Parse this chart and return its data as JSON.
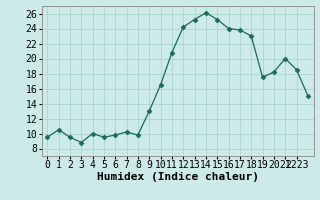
{
  "x": [
    0,
    1,
    2,
    3,
    4,
    5,
    6,
    7,
    8,
    9,
    10,
    11,
    12,
    13,
    14,
    15,
    16,
    17,
    18,
    19,
    20,
    21,
    22,
    23
  ],
  "y": [
    9.5,
    10.5,
    9.5,
    8.8,
    10.0,
    9.5,
    9.8,
    10.2,
    9.8,
    13.0,
    16.5,
    20.8,
    24.2,
    25.2,
    26.1,
    25.2,
    24.0,
    23.8,
    23.0,
    17.5,
    18.2,
    20.0,
    18.5,
    15.0
  ],
  "line_color": "#1a6b5a",
  "marker": "D",
  "marker_size": 2.5,
  "bg_color": "#cceae7",
  "grid_color": "#aad4d0",
  "xlabel": "Humidex (Indice chaleur)",
  "ylim": [
    7,
    27
  ],
  "xlim": [
    -0.5,
    23.5
  ],
  "yticks": [
    8,
    10,
    12,
    14,
    16,
    18,
    20,
    22,
    24,
    26
  ],
  "xlabel_fontsize": 8,
  "tick_fontsize": 7
}
